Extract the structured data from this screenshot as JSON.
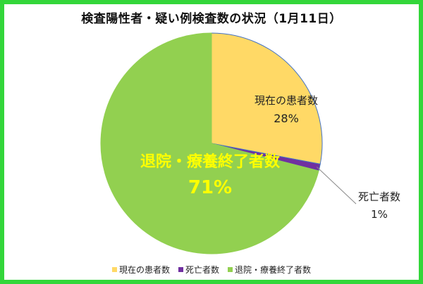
{
  "chart_data": {
    "type": "pie",
    "title": "検査陽性者・疑い例検査数の状況（1月11日）",
    "slices": [
      {
        "label": "現在の患者数",
        "value": 28,
        "percent_label": "28%",
        "color": "#ffd966",
        "edge": "#4472c4"
      },
      {
        "label": "死亡者数",
        "value": 1,
        "percent_label": "1%",
        "color": "#7030a0",
        "edge": "#4472c4"
      },
      {
        "label": "退院・療養終了者数",
        "value": 71,
        "percent_label": "71%",
        "color": "#92d050",
        "edge": "#92d050"
      }
    ],
    "legend_position": "bottom",
    "label_colors": {
      "default": "#222222",
      "highlight": "#ffff00"
    },
    "frame_color": "#33d63a"
  }
}
